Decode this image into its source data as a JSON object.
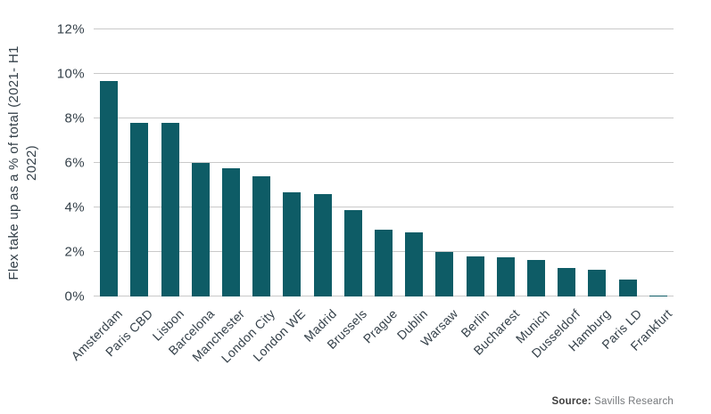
{
  "chart_data": {
    "type": "bar",
    "categories": [
      "Amsterdam",
      "Paris CBD",
      "Lisbon",
      "Barcelona",
      "Manchester",
      "London City",
      "London WE",
      "Madrid",
      "Brussels",
      "Prague",
      "Dublin",
      "Warsaw",
      "Berlin",
      "Bucharest",
      "Munich",
      "Dusseldorf",
      "Hamburg",
      "Paris LD",
      "Frankfurt"
    ],
    "values": [
      9.7,
      7.8,
      7.8,
      6.0,
      5.75,
      5.4,
      4.7,
      4.6,
      3.9,
      3.0,
      2.9,
      2.0,
      1.8,
      1.75,
      1.65,
      1.3,
      1.2,
      0.75,
      0.05
    ],
    "title": "",
    "xlabel": "",
    "ylabel": "Flex take up as a % of total (2021- H1 2022)",
    "ylabel_lines": [
      "Flex take up as a % of total (2021- H1",
      "2022)"
    ],
    "ylim": [
      0,
      12
    ],
    "yticks": [
      "0%",
      "2%",
      "4%",
      "6%",
      "8%",
      "10%",
      "12%"
    ],
    "ytick_values": [
      0,
      2,
      4,
      6,
      8,
      10,
      12
    ],
    "grid": true,
    "legend": "none",
    "bar_color": "#0e5c66",
    "grid_color": "#c9c9c9",
    "text_color": "#333f48"
  },
  "footer": {
    "source_label": "Source:",
    "source_text": " Savills Research"
  }
}
